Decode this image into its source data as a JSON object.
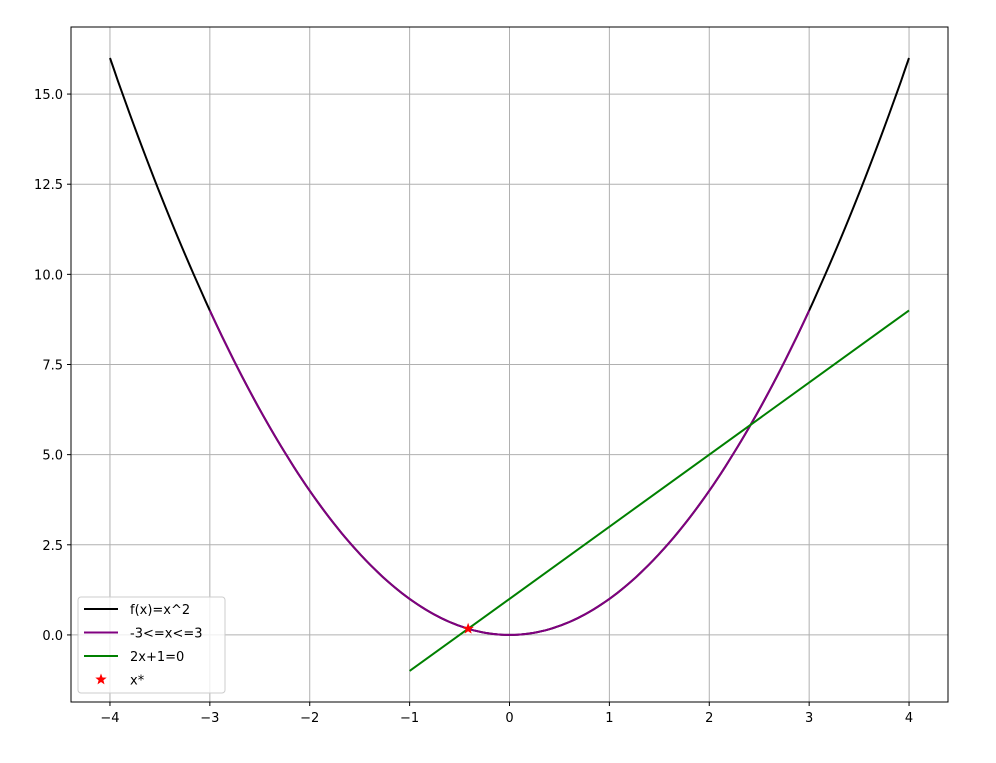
{
  "chart_data": {
    "type": "line",
    "title": "",
    "xlabel": "",
    "ylabel": "",
    "xlim": [
      -4.39,
      4.39
    ],
    "ylim": [
      -1.86,
      16.86
    ],
    "grid": true,
    "legend_position": "lower-left",
    "x_ticks": [
      "−4",
      "−3",
      "−2",
      "−1",
      "0",
      "1",
      "2",
      "3",
      "4"
    ],
    "x_tick_values": [
      -4,
      -3,
      -2,
      -1,
      0,
      1,
      2,
      3,
      4
    ],
    "y_ticks": [
      "0.0",
      "2.5",
      "5.0",
      "7.5",
      "10.0",
      "12.5",
      "15.0"
    ],
    "y_tick_values": [
      0,
      2.5,
      5,
      7.5,
      10,
      12.5,
      15
    ],
    "series": [
      {
        "name": "f(x)=x^2",
        "kind": "function",
        "expr": "x^2",
        "x_range": [
          -4,
          4
        ],
        "color": "#000000"
      },
      {
        "name": "-3<=x<=3",
        "kind": "function",
        "expr": "x^2",
        "x_range": [
          -3,
          3
        ],
        "color": "#800080"
      },
      {
        "name": "2x+1=0",
        "kind": "line",
        "x": [
          -1,
          4
        ],
        "y": [
          -1,
          9
        ],
        "color": "#008000"
      },
      {
        "name": "x*",
        "kind": "point",
        "marker": "star",
        "x": [
          -0.414
        ],
        "y": [
          0.172
        ],
        "color": "#ff0000"
      }
    ]
  }
}
